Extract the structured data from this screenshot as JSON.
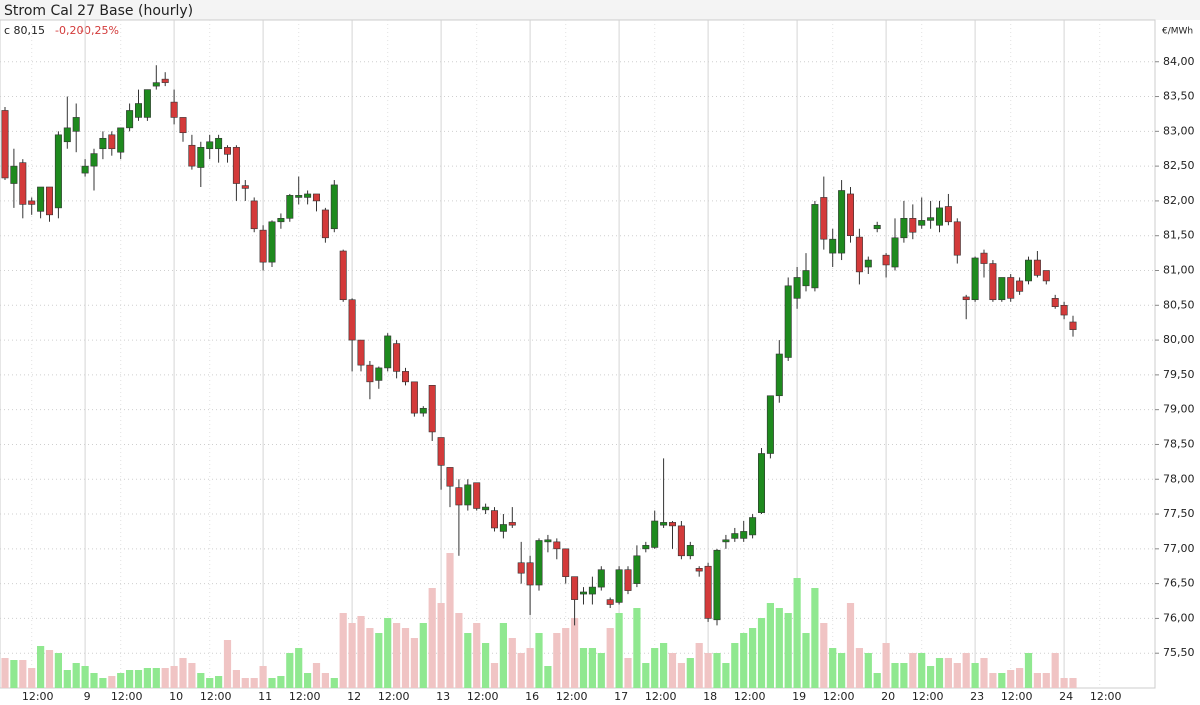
{
  "chart_data": {
    "type": "candlestick",
    "title": "Strom Cal 27 Base (hourly)",
    "annotations": [
      "c 80,15",
      "-0,20",
      "-0,25%"
    ],
    "y_unit_label": "€/MWh",
    "categories": [
      null,
      null,
      null,
      "12:00",
      null,
      null,
      null,
      null,
      null,
      "9",
      null,
      null,
      null,
      "12:00",
      null,
      null,
      null,
      null,
      null,
      "10",
      null,
      null,
      null,
      "12:00",
      null,
      null,
      null,
      null,
      null,
      "11",
      null,
      null,
      null,
      "12:00",
      null,
      null,
      null,
      null,
      null,
      "12",
      null,
      null,
      null,
      "12:00",
      null,
      null,
      null,
      null,
      null,
      "13",
      null,
      null,
      null,
      "12:00",
      null,
      null,
      null,
      null,
      null,
      "16",
      null,
      null,
      null,
      "12:00",
      null,
      null,
      null,
      null,
      null,
      "17",
      null,
      null,
      null,
      "12:00",
      null,
      null,
      null,
      null,
      null,
      "18",
      null,
      null,
      null,
      "12:00",
      null,
      null,
      null,
      null,
      null,
      "19",
      null,
      null,
      null,
      "12:00",
      null,
      null,
      null,
      null,
      null,
      "20",
      null,
      null,
      null,
      "12:00",
      null,
      null,
      null,
      null,
      null,
      "23",
      null,
      null,
      null,
      "12:00",
      null,
      null,
      null,
      null,
      null,
      "24",
      null,
      null,
      null,
      "12:00"
    ],
    "open": [
      83.3,
      82.25,
      82.55,
      82.0,
      81.85,
      82.2,
      81.9,
      82.85,
      83.0,
      82.4,
      82.5,
      82.75,
      82.95,
      82.7,
      83.05,
      83.2,
      83.2,
      83.65,
      83.75,
      83.42,
      83.2,
      82.8,
      82.48,
      82.75,
      82.75,
      82.77,
      82.77,
      82.22,
      82.0,
      81.58,
      81.12,
      81.7,
      81.75,
      82.05,
      82.05,
      82.1,
      81.87,
      81.6,
      81.28,
      80.58,
      80.0,
      79.64,
      79.42,
      79.6,
      79.95,
      79.55,
      79.4,
      78.95,
      79.35,
      78.6,
      78.17,
      77.88,
      77.63,
      77.95,
      77.56,
      77.55,
      77.25,
      77.38,
      76.8,
      76.8,
      76.48,
      77.1,
      77.1,
      77.0,
      76.6,
      76.35,
      76.35,
      76.45,
      76.27,
      76.23,
      76.7,
      76.5,
      77.0,
      77.02,
      77.34,
      77.38,
      77.33,
      76.9,
      76.72,
      76.75,
      75.98,
      77.1,
      77.15,
      77.15,
      77.2,
      77.52,
      78.37,
      79.2,
      79.75,
      80.6,
      80.78,
      80.75,
      82.05,
      81.25,
      81.25,
      82.1,
      81.48,
      81.05,
      81.6,
      81.22,
      81.05,
      81.47,
      81.75,
      81.65,
      81.72,
      81.65,
      81.92,
      81.7,
      80.62,
      80.58,
      81.25,
      81.1,
      80.58,
      80.9,
      80.85,
      80.85,
      81.15,
      81.0,
      80.6,
      80.5,
      80.26,
      null,
      null,
      null
    ],
    "high": [
      83.35,
      82.75,
      82.6,
      82.05,
      82.2,
      82.2,
      83.0,
      83.5,
      83.4,
      82.6,
      82.75,
      83.0,
      83.0,
      83.05,
      83.4,
      83.6,
      83.6,
      83.95,
      83.85,
      83.6,
      83.2,
      82.95,
      82.85,
      82.95,
      82.95,
      82.8,
      82.8,
      82.3,
      82.05,
      81.65,
      81.72,
      81.82,
      82.1,
      82.35,
      82.15,
      82.1,
      81.9,
      82.3,
      81.3,
      80.6,
      80.0,
      79.7,
      79.62,
      80.1,
      80.0,
      79.6,
      79.4,
      79.05,
      79.35,
      78.6,
      78.17,
      78.0,
      78.0,
      77.95,
      77.65,
      77.6,
      77.5,
      77.6,
      77.1,
      76.9,
      77.15,
      77.2,
      77.15,
      77.0,
      76.6,
      76.45,
      76.6,
      76.75,
      76.3,
      76.75,
      76.75,
      77.05,
      77.1,
      77.55,
      78.3,
      77.4,
      77.4,
      77.1,
      76.75,
      76.8,
      77.0,
      77.2,
      77.3,
      77.4,
      77.5,
      78.45,
      79.2,
      80.0,
      80.9,
      81.05,
      81.25,
      82.0,
      82.35,
      81.6,
      82.3,
      82.2,
      81.6,
      81.2,
      81.7,
      81.25,
      81.75,
      82.0,
      81.95,
      82.05,
      82.0,
      82.0,
      82.1,
      81.75,
      80.65,
      81.2,
      81.3,
      81.15,
      80.9,
      80.95,
      80.9,
      81.2,
      81.28,
      81.0,
      80.65,
      80.55,
      80.35,
      null,
      null,
      null
    ],
    "low": [
      82.3,
      81.9,
      81.75,
      81.8,
      81.75,
      81.7,
      81.75,
      82.75,
      82.7,
      82.35,
      82.15,
      82.6,
      82.65,
      82.6,
      83.0,
      83.15,
      83.15,
      83.6,
      83.65,
      83.1,
      82.85,
      82.45,
      82.2,
      82.6,
      82.55,
      82.55,
      82.0,
      82.0,
      81.55,
      81.0,
      81.05,
      81.6,
      81.7,
      81.95,
      81.95,
      81.85,
      81.4,
      81.55,
      80.55,
      79.55,
      79.55,
      79.15,
      79.3,
      79.55,
      79.45,
      79.35,
      78.9,
      78.9,
      78.55,
      77.85,
      77.6,
      76.9,
      77.55,
      77.55,
      77.5,
      77.25,
      77.15,
      77.3,
      76.5,
      76.05,
      76.4,
      76.95,
      76.85,
      76.5,
      75.9,
      76.2,
      76.2,
      76.4,
      76.15,
      76.2,
      76.35,
      76.45,
      76.95,
      77.0,
      77.3,
      77.0,
      76.85,
      76.85,
      76.6,
      75.95,
      75.9,
      77.0,
      77.1,
      77.1,
      77.15,
      77.5,
      78.3,
      79.1,
      79.7,
      80.45,
      80.7,
      80.7,
      81.3,
      81.05,
      81.15,
      81.4,
      80.8,
      80.95,
      81.55,
      80.9,
      81.0,
      81.4,
      81.45,
      81.6,
      81.6,
      81.55,
      81.65,
      81.1,
      80.3,
      80.55,
      80.9,
      80.55,
      80.55,
      80.55,
      80.65,
      80.8,
      80.9,
      80.8,
      80.45,
      80.3,
      80.05,
      null,
      null,
      null
    ],
    "close": [
      82.33,
      82.5,
      81.95,
      81.95,
      82.2,
      81.8,
      82.95,
      83.05,
      83.2,
      82.5,
      82.68,
      82.9,
      82.75,
      83.05,
      83.3,
      83.4,
      83.6,
      83.7,
      83.7,
      83.2,
      82.98,
      82.5,
      82.77,
      82.85,
      82.9,
      82.67,
      82.25,
      82.18,
      81.6,
      81.12,
      81.7,
      81.75,
      82.08,
      82.08,
      82.1,
      82.0,
      81.47,
      82.23,
      80.58,
      80.0,
      79.64,
      79.4,
      79.6,
      80.06,
      79.55,
      79.4,
      78.95,
      79.02,
      78.68,
      78.2,
      77.9,
      77.63,
      77.92,
      77.58,
      77.6,
      77.3,
      77.35,
      77.34,
      76.65,
      76.48,
      77.12,
      77.13,
      77.0,
      76.6,
      76.27,
      76.38,
      76.45,
      76.7,
      76.2,
      76.7,
      76.4,
      76.9,
      77.05,
      77.4,
      77.38,
      77.33,
      76.9,
      77.05,
      76.68,
      76.0,
      76.98,
      77.13,
      77.22,
      77.25,
      77.45,
      78.37,
      79.2,
      79.8,
      80.78,
      80.9,
      81.0,
      81.95,
      81.45,
      81.45,
      82.15,
      81.5,
      80.98,
      81.15,
      81.65,
      81.08,
      81.47,
      81.75,
      81.55,
      81.72,
      81.76,
      81.9,
      81.7,
      81.22,
      80.58,
      81.18,
      81.1,
      80.58,
      80.9,
      80.6,
      80.7,
      81.15,
      80.93,
      80.85,
      80.48,
      80.36,
      80.15,
      null,
      null,
      null
    ],
    "volume": [
      30,
      28,
      28,
      20,
      42,
      38,
      35,
      18,
      25,
      22,
      15,
      10,
      12,
      15,
      18,
      18,
      20,
      20,
      20,
      22,
      30,
      25,
      15,
      10,
      12,
      48,
      18,
      10,
      10,
      22,
      10,
      12,
      35,
      40,
      15,
      25,
      15,
      10,
      75,
      65,
      72,
      60,
      55,
      70,
      65,
      60,
      50,
      65,
      100,
      85,
      135,
      75,
      55,
      65,
      45,
      25,
      65,
      50,
      35,
      40,
      55,
      22,
      55,
      60,
      70,
      40,
      40,
      35,
      60,
      75,
      30,
      80,
      25,
      40,
      45,
      35,
      25,
      30,
      45,
      35,
      35,
      25,
      45,
      55,
      60,
      70,
      85,
      80,
      75,
      110,
      55,
      100,
      65,
      40,
      35,
      85,
      40,
      35,
      15,
      45,
      25,
      25,
      35,
      35,
      22,
      30,
      30,
      25,
      35,
      25,
      30,
      15,
      15,
      18,
      20,
      35,
      15,
      15,
      35,
      10,
      10,
      null,
      null,
      null
    ],
    "up_color": "#1e8a1e",
    "down_color": "#d33a3a",
    "volume_up_color": "#90e890",
    "volume_down_color": "#f0c4c4",
    "ylim": [
      75.0,
      84.6
    ],
    "yticks": [
      {
        "value": 75.5,
        "label": "75,50"
      },
      {
        "value": 76,
        "label": "76,00"
      },
      {
        "value": 76.5,
        "label": "76,50"
      },
      {
        "value": 77,
        "label": "77,00"
      },
      {
        "value": 77.5,
        "label": "77,50"
      },
      {
        "value": 78,
        "label": "78,00"
      },
      {
        "value": 78.5,
        "label": "78,50"
      },
      {
        "value": 79,
        "label": "79,00"
      },
      {
        "value": 79.5,
        "label": "79,50"
      },
      {
        "value": 80,
        "label": "80,00"
      },
      {
        "value": 80.5,
        "label": "80,50"
      },
      {
        "value": 81,
        "label": "81,00"
      },
      {
        "value": 81.5,
        "label": "81,50"
      },
      {
        "value": 82,
        "label": "82,00"
      },
      {
        "value": 82.5,
        "label": "82,50"
      },
      {
        "value": 83,
        "label": "83,00"
      },
      {
        "value": 83.5,
        "label": "83,50"
      },
      {
        "value": 84,
        "label": "84,00"
      }
    ],
    "grid": true
  }
}
